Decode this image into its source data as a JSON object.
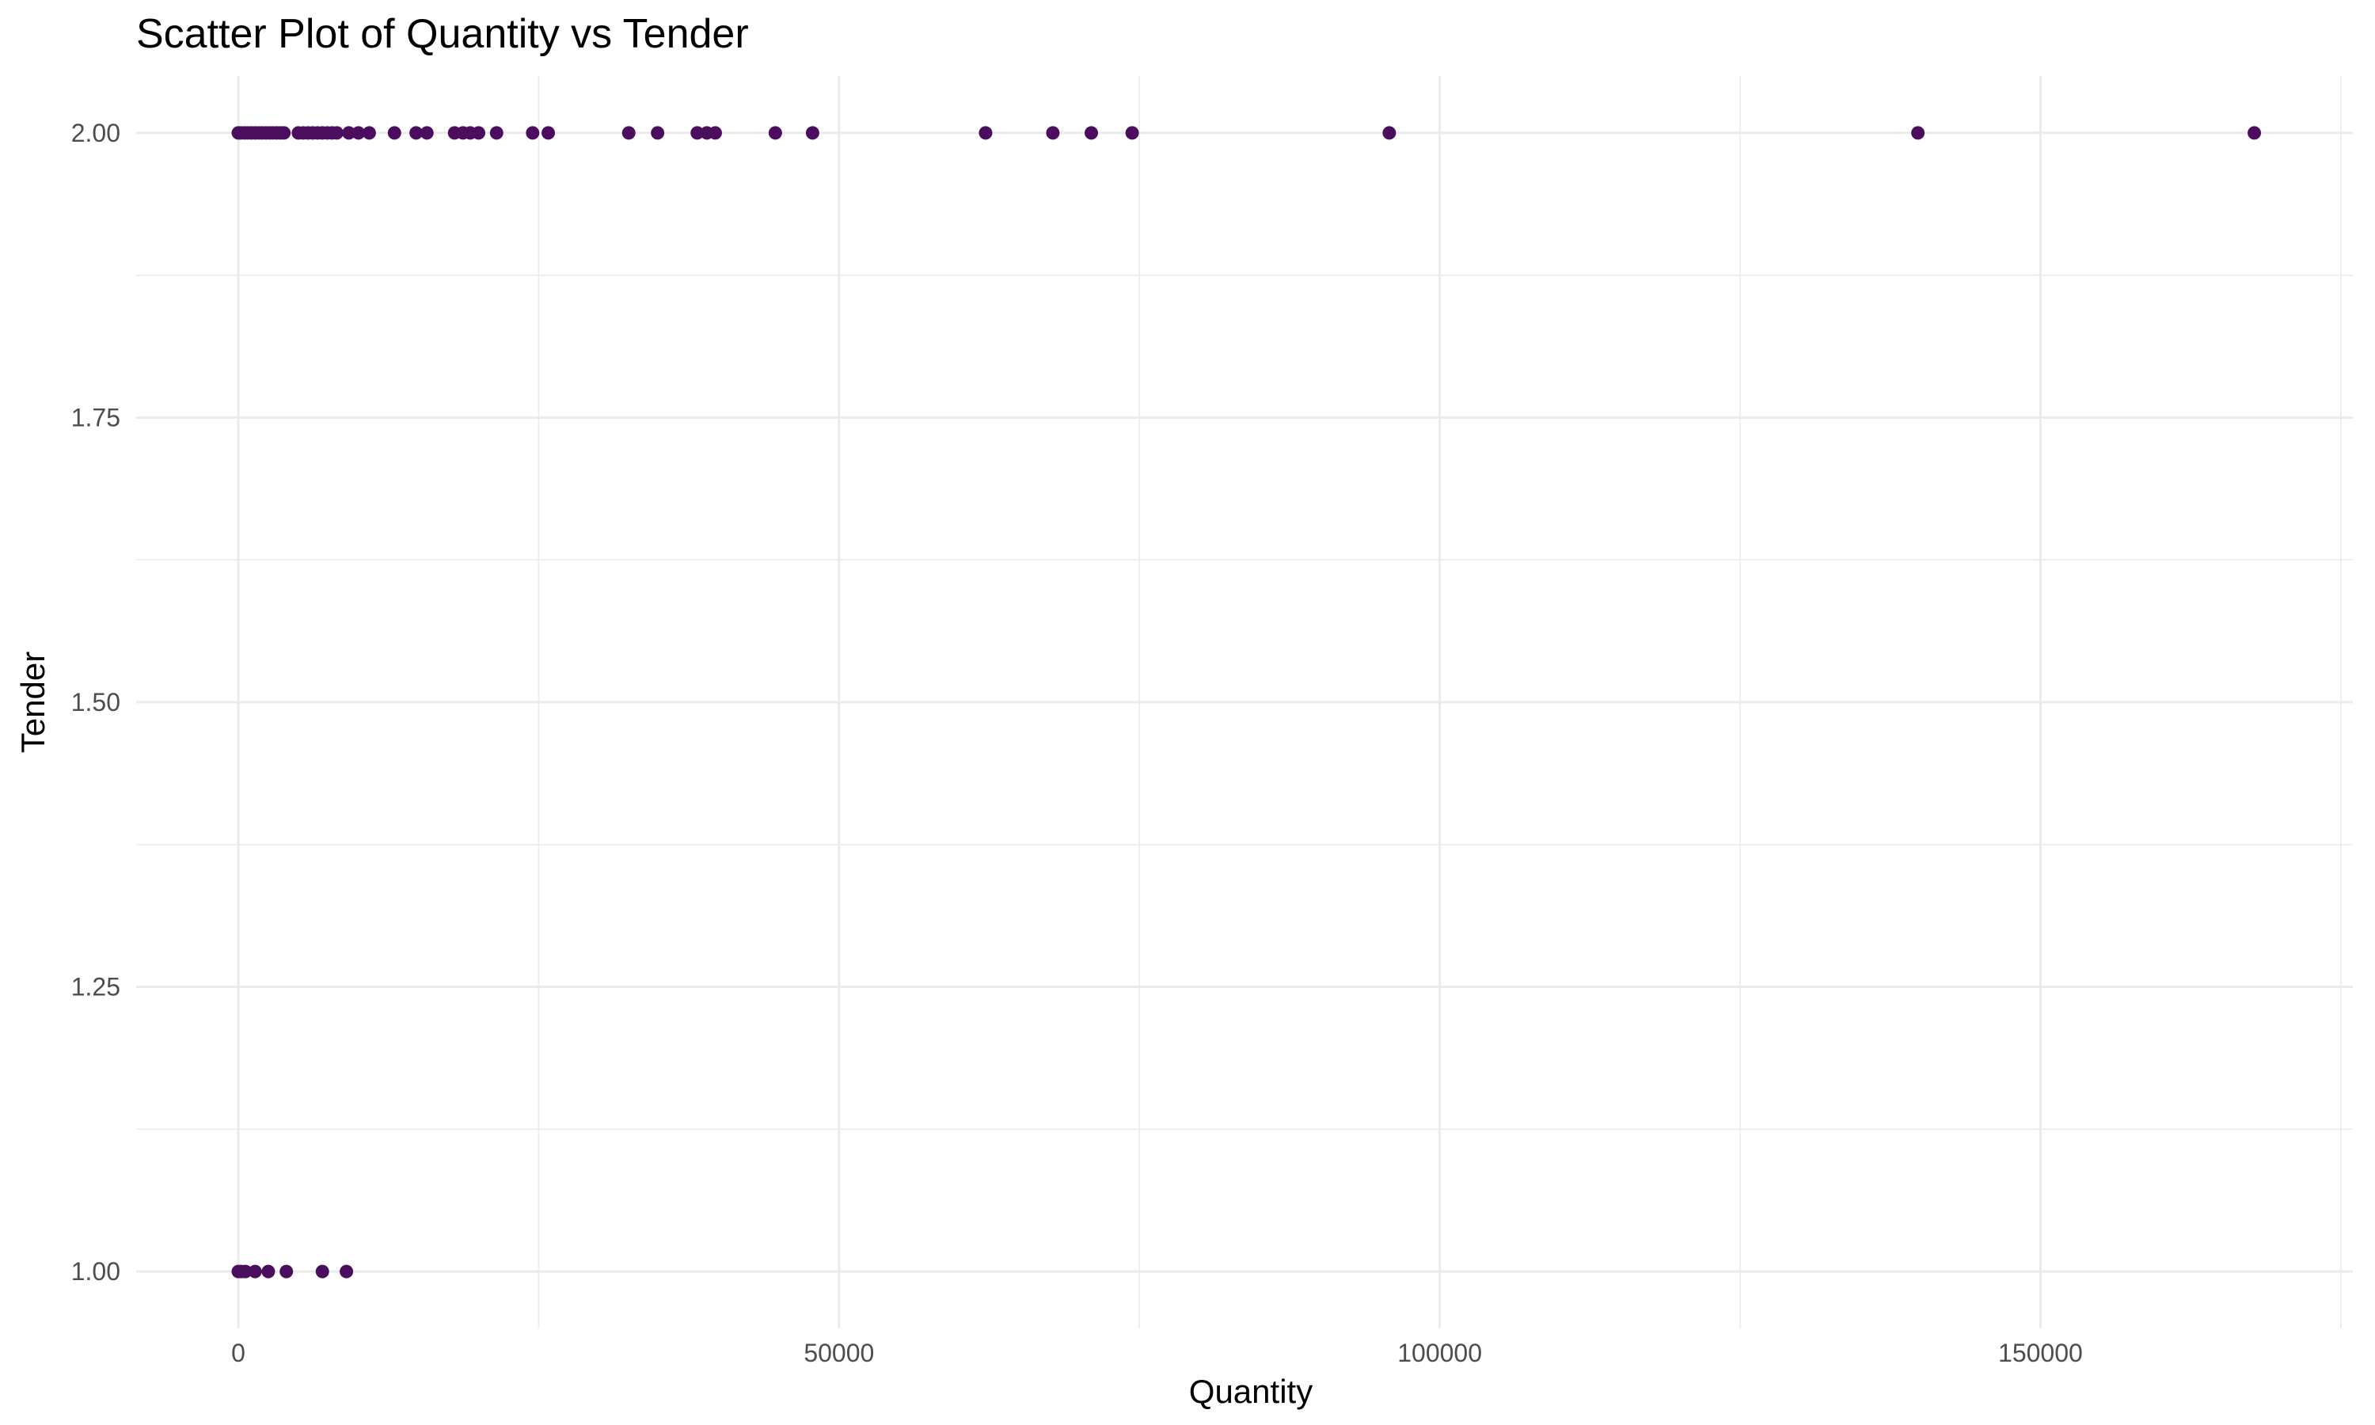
{
  "chart_data": {
    "type": "scatter",
    "title": "Scatter Plot of Quantity vs Tender",
    "xlabel": "Quantity",
    "ylabel": "Tender",
    "xlim": [
      -8500,
      176000
    ],
    "ylim": [
      0.95,
      2.05
    ],
    "x_ticks": [
      0,
      50000,
      100000,
      150000
    ],
    "x_tick_labels": [
      "0",
      "50000",
      "100000",
      "150000"
    ],
    "y_ticks": [
      1.0,
      1.25,
      1.5,
      1.75,
      2.0
    ],
    "y_tick_labels": [
      "1.00",
      "1.25",
      "1.50",
      "1.75",
      "2.00"
    ],
    "grid": true,
    "point_color": "#4B0E5E",
    "series": [
      {
        "x": [
          0,
          200,
          500,
          800,
          1100,
          1400,
          1700,
          2000,
          2300,
          2600,
          2900,
          3200,
          3500,
          3800,
          5000,
          5400,
          5800,
          6200,
          6600,
          7000,
          7400,
          7800,
          8200,
          9200,
          10000,
          10900,
          13000,
          14800,
          15700,
          18000,
          18700,
          19300,
          20000,
          21500,
          24500,
          25800,
          32500,
          34900,
          38200,
          39000,
          39700,
          44700,
          47800,
          62200,
          67800,
          71000,
          74400,
          95800,
          139800,
          167800,
          0,
          250,
          600,
          1400,
          2500,
          4000,
          7000,
          9000
        ],
        "y": [
          2,
          2,
          2,
          2,
          2,
          2,
          2,
          2,
          2,
          2,
          2,
          2,
          2,
          2,
          2,
          2,
          2,
          2,
          2,
          2,
          2,
          2,
          2,
          2,
          2,
          2,
          2,
          2,
          2,
          2,
          2,
          2,
          2,
          2,
          2,
          2,
          2,
          2,
          2,
          2,
          2,
          2,
          2,
          2,
          2,
          2,
          2,
          2,
          2,
          2,
          1,
          1,
          1,
          1,
          1,
          1,
          1,
          1
        ]
      }
    ]
  }
}
